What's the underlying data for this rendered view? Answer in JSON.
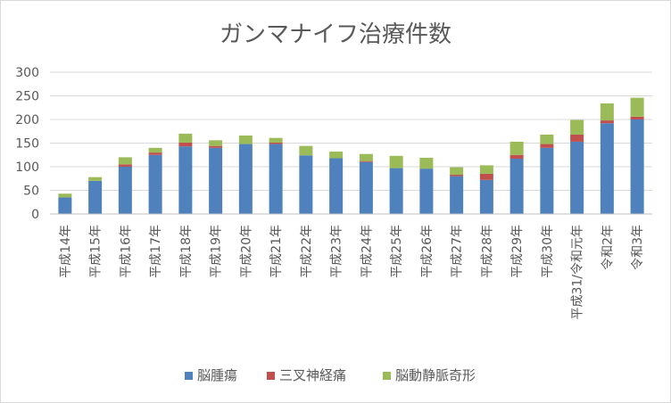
{
  "chart_data": {
    "type": "bar",
    "stacked": true,
    "title": "ガンマナイフ治療件数",
    "categories": [
      "平成14年",
      "平成15年",
      "平成16年",
      "平成17年",
      "平成18年",
      "平成19年",
      "平成20年",
      "平成21年",
      "平成22年",
      "平成23年",
      "平成24年",
      "平成25年",
      "平成26年",
      "平成27年",
      "平成28年",
      "平成29年",
      "平成30年",
      "平成31/令和元年",
      "令和2年",
      "令和3年"
    ],
    "series": [
      {
        "name": "脳腫瘍",
        "color": "#4f81bd",
        "values": [
          35,
          70,
          100,
          125,
          143,
          140,
          148,
          148,
          124,
          118,
          110,
          97,
          96,
          80,
          72,
          117,
          140,
          153,
          192,
          200
        ]
      },
      {
        "name": "三叉神経痛",
        "color": "#c0504d",
        "values": [
          0,
          0,
          5,
          5,
          8,
          4,
          0,
          3,
          0,
          0,
          2,
          0,
          0,
          3,
          13,
          8,
          8,
          15,
          6,
          6
        ]
      },
      {
        "name": "脳動静脈奇形",
        "color": "#9bbb59",
        "values": [
          8,
          8,
          15,
          10,
          19,
          12,
          18,
          10,
          20,
          14,
          15,
          26,
          23,
          16,
          18,
          28,
          20,
          31,
          36,
          40
        ]
      }
    ],
    "yticks": [
      0,
      50,
      100,
      150,
      200,
      250,
      300
    ],
    "ylim": [
      0,
      300
    ],
    "grid": true,
    "legend_position": "bottom"
  }
}
